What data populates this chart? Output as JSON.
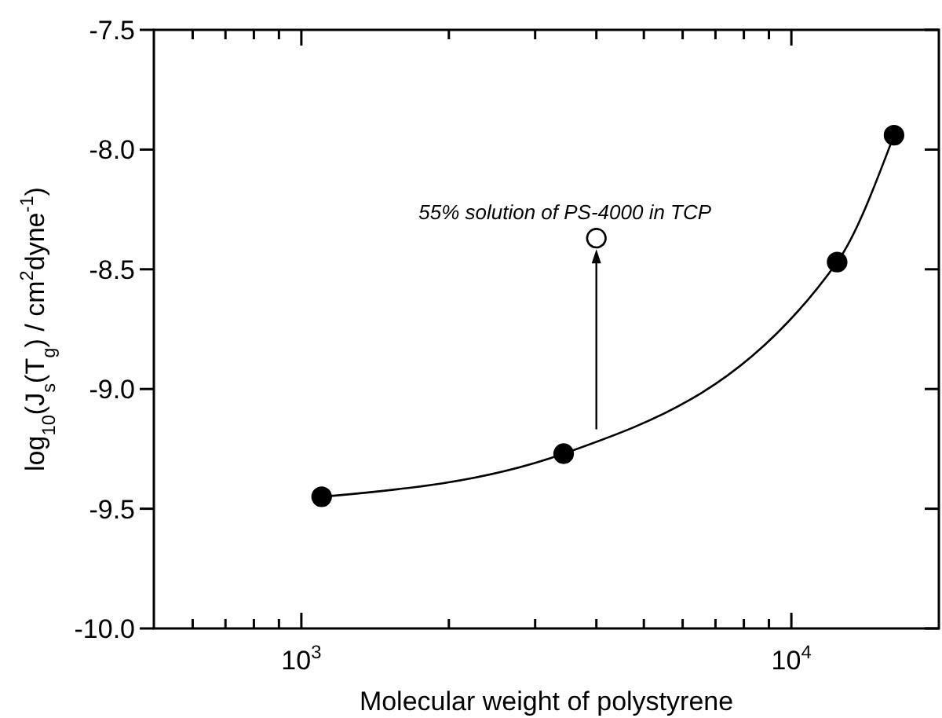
{
  "chart_data": {
    "type": "line",
    "xlabel": "Molecular weight of polystyrene",
    "ylabel": "log$_{10}$(J$_{s}$(T$_{g}$) / cm$^{2}$dyne$^{-1}$)",
    "log": "x",
    "xlim": [
      500,
      20000
    ],
    "ylim": [
      -10,
      -7.5
    ],
    "xticks": [
      {
        "value": 600,
        "label": null
      },
      {
        "value": 700,
        "label": null
      },
      {
        "value": 800,
        "label": null
      },
      {
        "value": 900,
        "label": null
      },
      {
        "value": 1000,
        "label": "10$^{3}$"
      },
      {
        "value": 2000,
        "label": null
      },
      {
        "value": 3000,
        "label": null
      },
      {
        "value": 4000,
        "label": null
      },
      {
        "value": 5000,
        "label": null
      },
      {
        "value": 6000,
        "label": null
      },
      {
        "value": 7000,
        "label": null
      },
      {
        "value": 8000,
        "label": null
      },
      {
        "value": 9000,
        "label": null
      },
      {
        "value": 10000,
        "label": "10$^{4}$"
      }
    ],
    "yticks": [
      {
        "value": -10,
        "label": "-10.0"
      },
      {
        "value": -9.5,
        "label": "-9.5"
      },
      {
        "value": -9,
        "label": "-9.0"
      },
      {
        "value": -8.5,
        "label": "-8.5"
      },
      {
        "value": -8,
        "label": "-8.0"
      },
      {
        "value": -7.5,
        "label": "-7.5"
      }
    ],
    "grid": false,
    "marker": "circle",
    "line_style": "solid",
    "series": [
      {
        "color": "#000000",
        "x": [
          1100,
          3430,
          12400,
          16200
        ],
        "values": [
          -9.45,
          -9.27,
          -8.47,
          -7.94
        ]
      },
      {
        "type": "scatter",
        "color": "#ffffff",
        "x": [
          4000
        ],
        "values": [
          -8.37
        ]
      }
    ],
    "annotations": [
      {
        "text": "55% solution of PS-4000 in TCP",
        "x": 4000,
        "y": -8.37
      }
    ]
  }
}
